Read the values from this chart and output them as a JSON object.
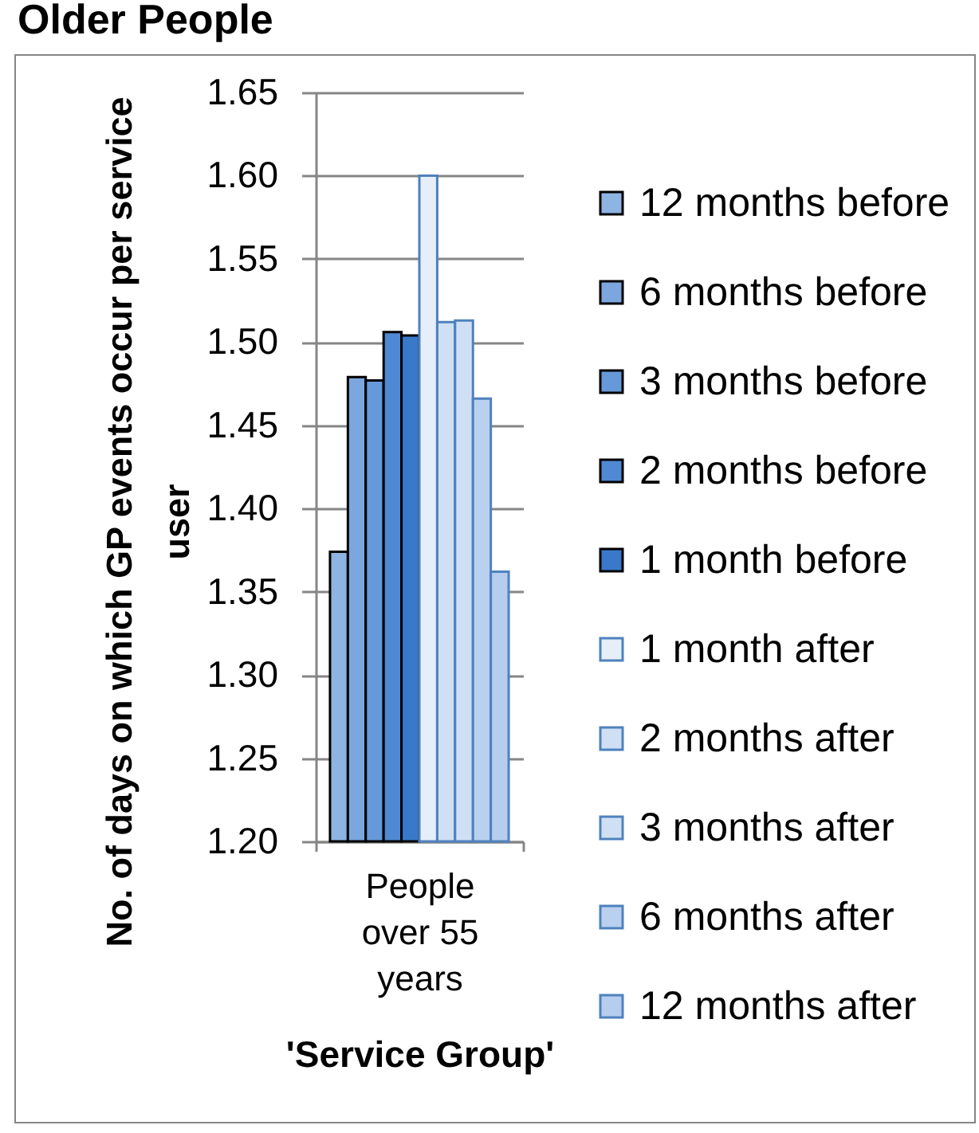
{
  "chart_data": {
    "type": "bar",
    "title": "Older People",
    "xlabel": "'Service Group'",
    "ylabel": "No. of days on which GP events occur per service user",
    "categories": [
      "People over 55 years"
    ],
    "series": [
      {
        "name": "12 months before",
        "color": "#8db4e3",
        "values": [
          1.374
        ]
      },
      {
        "name": "6 months before",
        "color": "#7ba7de",
        "values": [
          1.479
        ]
      },
      {
        "name": "3 months before",
        "color": "#6699d9",
        "values": [
          1.477
        ]
      },
      {
        "name": "2 months before",
        "color": "#4f89d3",
        "values": [
          1.506
        ]
      },
      {
        "name": "1 month before",
        "color": "#3a78c9",
        "values": [
          1.504
        ]
      },
      {
        "name": "1 month after",
        "color": "#e6eef9",
        "values": [
          1.6
        ]
      },
      {
        "name": "2 months after",
        "color": "#cfdff4",
        "values": [
          1.512
        ]
      },
      {
        "name": "3 months after",
        "color": "#d0e0f4",
        "values": [
          1.513
        ]
      },
      {
        "name": "6 months after",
        "color": "#b9d0ef",
        "values": [
          1.466
        ]
      },
      {
        "name": "12 months after",
        "color": "#b6cdee",
        "values": [
          1.362
        ]
      }
    ],
    "ylim": [
      1.2,
      1.65
    ],
    "yticks": [
      {
        "value": 1.2,
        "label": "1.20"
      },
      1.25,
      {
        "value": 1.3,
        "label": "1.30"
      },
      1.35,
      {
        "value": 1.4,
        "label": "1.40"
      },
      1.45,
      {
        "value": 1.5,
        "label": "1.50"
      },
      1.55,
      {
        "value": 1.6,
        "label": "1.60"
      },
      1.65
    ],
    "grid": "y",
    "legend": "right"
  }
}
